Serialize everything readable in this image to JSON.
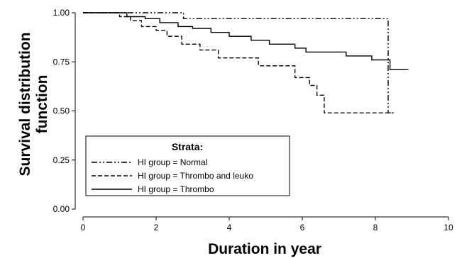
{
  "chart_data": {
    "type": "line",
    "title": "",
    "xlabel": "Duration in year",
    "ylabel_line1": "Survival distribution",
    "ylabel_line2": "function",
    "xlim": [
      0,
      10
    ],
    "ylim": [
      0,
      1
    ],
    "x_ticks": [
      "0",
      "2",
      "4",
      "6",
      "8",
      "10"
    ],
    "y_ticks": [
      "0.00",
      "0.25",
      "0.50",
      "0.75",
      "1.00"
    ],
    "legend": {
      "title": "Strata:",
      "position": "bottom-left"
    },
    "series": [
      {
        "name": "HI group = Normal",
        "style": "dash-dot-dot",
        "points": [
          [
            0,
            1.0
          ],
          [
            2.75,
            1.0
          ],
          [
            2.75,
            0.97
          ],
          [
            8.35,
            0.97
          ],
          [
            8.35,
            0.49
          ],
          [
            8.45,
            0.49
          ]
        ]
      },
      {
        "name": "HI group = Thrombo and leuko",
        "style": "dashed",
        "points": [
          [
            0,
            1.0
          ],
          [
            1.0,
            1.0
          ],
          [
            1.0,
            0.98
          ],
          [
            1.3,
            0.98
          ],
          [
            1.3,
            0.96
          ],
          [
            1.6,
            0.96
          ],
          [
            1.6,
            0.93
          ],
          [
            2.0,
            0.93
          ],
          [
            2.0,
            0.91
          ],
          [
            2.3,
            0.91
          ],
          [
            2.3,
            0.88
          ],
          [
            2.7,
            0.88
          ],
          [
            2.7,
            0.84
          ],
          [
            3.2,
            0.84
          ],
          [
            3.2,
            0.81
          ],
          [
            3.7,
            0.81
          ],
          [
            3.7,
            0.77
          ],
          [
            4.8,
            0.77
          ],
          [
            4.8,
            0.73
          ],
          [
            5.8,
            0.73
          ],
          [
            5.8,
            0.67
          ],
          [
            6.2,
            0.67
          ],
          [
            6.2,
            0.63
          ],
          [
            6.4,
            0.63
          ],
          [
            6.4,
            0.58
          ],
          [
            6.6,
            0.58
          ],
          [
            6.6,
            0.49
          ],
          [
            8.5,
            0.49
          ]
        ]
      },
      {
        "name": "HI group = Thrombo",
        "style": "solid",
        "points": [
          [
            0,
            1.0
          ],
          [
            1.2,
            1.0
          ],
          [
            1.2,
            0.98
          ],
          [
            1.7,
            0.98
          ],
          [
            1.7,
            0.97
          ],
          [
            2.1,
            0.97
          ],
          [
            2.1,
            0.95
          ],
          [
            2.6,
            0.95
          ],
          [
            2.6,
            0.93
          ],
          [
            3.0,
            0.93
          ],
          [
            3.0,
            0.92
          ],
          [
            3.5,
            0.92
          ],
          [
            3.5,
            0.9
          ],
          [
            4.0,
            0.9
          ],
          [
            4.0,
            0.88
          ],
          [
            4.6,
            0.88
          ],
          [
            4.6,
            0.86
          ],
          [
            5.1,
            0.86
          ],
          [
            5.1,
            0.84
          ],
          [
            5.8,
            0.84
          ],
          [
            5.8,
            0.82
          ],
          [
            6.1,
            0.82
          ],
          [
            6.1,
            0.8
          ],
          [
            7.2,
            0.8
          ],
          [
            7.2,
            0.78
          ],
          [
            7.9,
            0.78
          ],
          [
            7.9,
            0.76
          ],
          [
            8.4,
            0.76
          ],
          [
            8.4,
            0.71
          ],
          [
            8.9,
            0.71
          ]
        ]
      }
    ]
  }
}
